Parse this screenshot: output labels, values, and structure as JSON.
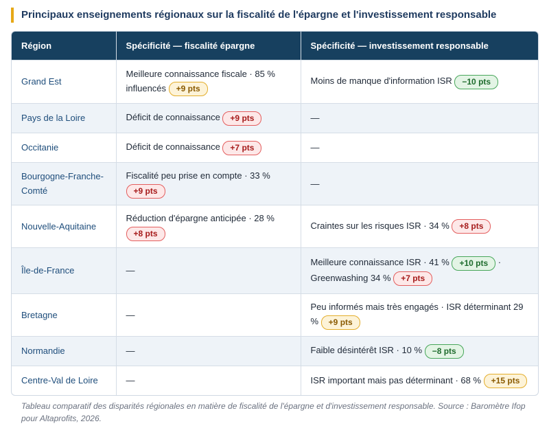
{
  "title": "Principaux enseignements régionaux sur la fiscalité de l'épargne et l'investissement responsable",
  "columns": [
    "Région",
    "Spécificité — fiscalité épargne",
    "Spécificité — investissement responsable"
  ],
  "rows": [
    {
      "region": "Grand Est",
      "fiscal": [
        {
          "text": "Meilleure connaissance fiscale · 85 % influencés "
        },
        {
          "pill": "+9 pts",
          "tone": "amber"
        }
      ],
      "isr": [
        {
          "text": "Moins de manque d'information ISR "
        },
        {
          "pill": "−10 pts",
          "tone": "green"
        }
      ]
    },
    {
      "region": "Pays de la Loire",
      "fiscal": [
        {
          "text": "Déficit de connaissance "
        },
        {
          "pill": "+9 pts",
          "tone": "red"
        }
      ],
      "isr": [
        {
          "text": "—"
        }
      ]
    },
    {
      "region": "Occitanie",
      "fiscal": [
        {
          "text": "Déficit de connaissance "
        },
        {
          "pill": "+7 pts",
          "tone": "red"
        }
      ],
      "isr": [
        {
          "text": "—"
        }
      ]
    },
    {
      "region": "Bourgogne-Franche-Comté",
      "fiscal": [
        {
          "text": "Fiscalité peu prise en compte · 33 % "
        },
        {
          "pill": "+9 pts",
          "tone": "red"
        }
      ],
      "isr": [
        {
          "text": "—"
        }
      ]
    },
    {
      "region": "Nouvelle-Aquitaine",
      "fiscal": [
        {
          "text": "Réduction d'épargne anticipée · 28 % "
        },
        {
          "pill": "+8 pts",
          "tone": "red"
        }
      ],
      "isr": [
        {
          "text": "Craintes sur les risques ISR · 34 % "
        },
        {
          "pill": "+8 pts",
          "tone": "red"
        }
      ]
    },
    {
      "region": "Île-de-France",
      "fiscal": [
        {
          "text": "—"
        }
      ],
      "isr": [
        {
          "text": "Meilleure connaissance ISR · 41 % "
        },
        {
          "pill": "+10 pts",
          "tone": "green"
        },
        {
          "text": " · Greenwashing 34 % "
        },
        {
          "pill": "+7 pts",
          "tone": "red"
        }
      ]
    },
    {
      "region": "Bretagne",
      "fiscal": [
        {
          "text": "—"
        }
      ],
      "isr": [
        {
          "text": "Peu informés mais très engagés · ISR déterminant 29 % "
        },
        {
          "pill": "+9 pts",
          "tone": "amber"
        }
      ]
    },
    {
      "region": "Normandie",
      "fiscal": [
        {
          "text": "—"
        }
      ],
      "isr": [
        {
          "text": "Faible désintérêt ISR · 10 % "
        },
        {
          "pill": "−8 pts",
          "tone": "green"
        }
      ]
    },
    {
      "region": "Centre-Val de Loire",
      "fiscal": [
        {
          "text": "—"
        }
      ],
      "isr": [
        {
          "text": "ISR important mais pas déterminant · 68 % "
        },
        {
          "pill": "+15 pts",
          "tone": "amber"
        }
      ]
    }
  ],
  "caption": "Tableau comparatif des disparités régionales en matière de fiscalité de l'épargne et d'investissement responsable. Source : Baromètre Ifop pour Altaprofits, 2026.",
  "colors": {
    "header_bg": "#17405f",
    "title_accent": "#e6a817",
    "region_text": "#1e4d7b"
  }
}
